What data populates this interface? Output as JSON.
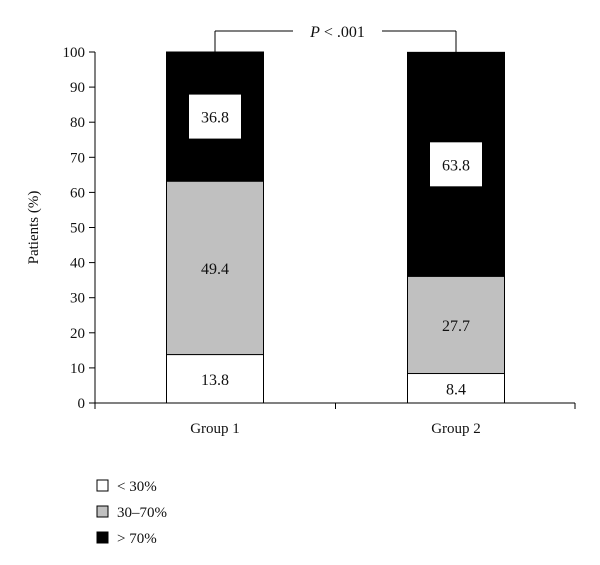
{
  "chart_data": {
    "type": "bar",
    "stacked": true,
    "categories": [
      "Group 1",
      "Group 2"
    ],
    "series": [
      {
        "name": "< 30%",
        "values": [
          13.8,
          8.4
        ],
        "color": "#ffffff"
      },
      {
        "name": "30–70%",
        "values": [
          49.4,
          27.7
        ],
        "color": "#c0c0c0"
      },
      {
        "name": "> 70%",
        "values": [
          36.8,
          63.8
        ],
        "color": "#000000"
      }
    ],
    "ylabel": "Patients (%)",
    "ylim": [
      0,
      100
    ],
    "yticks": [
      0,
      10,
      20,
      30,
      40,
      50,
      60,
      70,
      80,
      90,
      100
    ],
    "ytick_labels": [
      "0",
      "10",
      "20",
      "30",
      "40",
      "50",
      "60",
      "70",
      "80",
      "90",
      "100"
    ],
    "data_labels": [
      [
        "13.8",
        "8.4"
      ],
      [
        "49.4",
        "27.7"
      ],
      [
        "36.8",
        "63.8"
      ]
    ],
    "annotation": {
      "prefix": "P",
      "text": " < .001"
    },
    "legend_position": "bottom-left",
    "grid": false
  }
}
